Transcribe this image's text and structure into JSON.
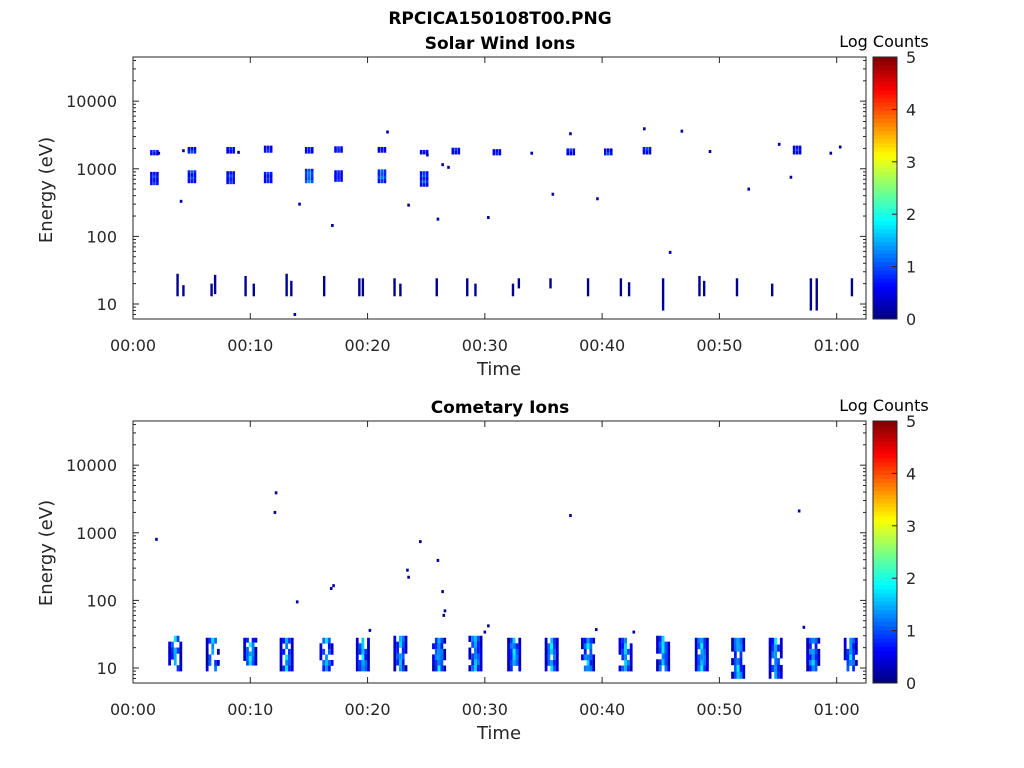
{
  "figure_title": "RPCICA150108T00.PNG",
  "colors": {
    "colormap": [
      "#00007f",
      "#0000ff",
      "#007fff",
      "#00ffff",
      "#7fff7f",
      "#ffff00",
      "#ff7f00",
      "#ff0000",
      "#7f0000"
    ],
    "axis": "#262626"
  },
  "chart_data": [
    {
      "type": "heatmap",
      "title": "Solar Wind Ions",
      "xlabel": "Time",
      "ylabel": "Energy (eV)",
      "x_unit": "minutes",
      "xlim": [
        0,
        62.5
      ],
      "ylim": [
        6,
        45000
      ],
      "yscale": "log",
      "xticks": [
        0,
        10,
        20,
        30,
        40,
        50,
        60
      ],
      "xticklabels": [
        "00:00",
        "00:10",
        "00:20",
        "00:30",
        "00:40",
        "00:50",
        "01:00"
      ],
      "yticks": [
        10,
        100,
        1000,
        10000
      ],
      "yticklabels": [
        "10",
        "100",
        "1000",
        "10000"
      ],
      "colorbar": {
        "label": "Log Counts",
        "range": [
          0,
          5
        ],
        "ticks": [
          "0",
          "1",
          "2",
          "3",
          "4",
          "5"
        ]
      },
      "spectra": [
        {
          "t": 1.8,
          "segs": [
            [
              580,
              900,
              0.8
            ],
            [
              1600,
              1900,
              0.8
            ]
          ]
        },
        {
          "t": 5.0,
          "segs": [
            [
              620,
              950,
              0.9
            ],
            [
              1700,
              2100,
              0.9
            ]
          ]
        },
        {
          "t": 8.3,
          "segs": [
            [
              600,
              920,
              0.9
            ],
            [
              1700,
              2100,
              0.7
            ]
          ]
        },
        {
          "t": 11.5,
          "segs": [
            [
              620,
              900,
              0.9
            ],
            [
              1750,
              2200,
              0.9
            ]
          ]
        },
        {
          "t": 15.0,
          "segs": [
            [
              620,
              1000,
              1.3
            ],
            [
              1700,
              2100,
              0.8
            ]
          ]
        },
        {
          "t": 17.5,
          "segs": [
            [
              650,
              950,
              0.8
            ],
            [
              1750,
              2150,
              0.9
            ]
          ]
        },
        {
          "t": 21.2,
          "segs": [
            [
              620,
              980,
              1.2
            ],
            [
              1750,
              2100,
              0.7
            ]
          ]
        },
        {
          "t": 24.8,
          "segs": [
            [
              550,
              920,
              1.0
            ],
            [
              1650,
              1900,
              0.7
            ]
          ]
        },
        {
          "t": 27.5,
          "segs": [
            [
              1650,
              2050,
              0.8
            ]
          ]
        },
        {
          "t": 31.0,
          "segs": [
            [
              1600,
              1950,
              0.7
            ]
          ]
        },
        {
          "t": 37.3,
          "segs": [
            [
              1600,
              2000,
              0.8
            ]
          ]
        },
        {
          "t": 40.5,
          "segs": [
            [
              1600,
              2000,
              0.8
            ]
          ]
        },
        {
          "t": 43.8,
          "segs": [
            [
              1650,
              2100,
              0.8
            ]
          ]
        },
        {
          "t": 56.6,
          "segs": [
            [
              1650,
              2200,
              0.8
            ]
          ]
        }
      ],
      "lowband": [
        {
          "t": 3.8,
          "lo": 13,
          "hi": 28
        },
        {
          "t": 4.3,
          "lo": 13,
          "hi": 19
        },
        {
          "t": 6.7,
          "lo": 13,
          "hi": 20
        },
        {
          "t": 7.0,
          "lo": 14,
          "hi": 27
        },
        {
          "t": 9.6,
          "lo": 13,
          "hi": 26
        },
        {
          "t": 10.3,
          "lo": 13,
          "hi": 20
        },
        {
          "t": 13.1,
          "lo": 13,
          "hi": 28
        },
        {
          "t": 13.5,
          "lo": 13,
          "hi": 22
        },
        {
          "t": 16.3,
          "lo": 13,
          "hi": 26
        },
        {
          "t": 19.3,
          "lo": 13,
          "hi": 24
        },
        {
          "t": 19.6,
          "lo": 13,
          "hi": 24
        },
        {
          "t": 22.3,
          "lo": 13,
          "hi": 24
        },
        {
          "t": 22.8,
          "lo": 13,
          "hi": 20
        },
        {
          "t": 25.9,
          "lo": 13,
          "hi": 24
        },
        {
          "t": 28.5,
          "lo": 13,
          "hi": 24
        },
        {
          "t": 29.2,
          "lo": 13,
          "hi": 20
        },
        {
          "t": 32.4,
          "lo": 13,
          "hi": 20
        },
        {
          "t": 32.9,
          "lo": 17,
          "hi": 24
        },
        {
          "t": 35.6,
          "lo": 17,
          "hi": 24
        },
        {
          "t": 38.8,
          "lo": 13,
          "hi": 24
        },
        {
          "t": 41.6,
          "lo": 13,
          "hi": 24
        },
        {
          "t": 42.3,
          "lo": 13,
          "hi": 21
        },
        {
          "t": 45.2,
          "lo": 8,
          "hi": 24
        },
        {
          "t": 48.3,
          "lo": 13,
          "hi": 26
        },
        {
          "t": 48.7,
          "lo": 13,
          "hi": 22
        },
        {
          "t": 51.5,
          "lo": 13,
          "hi": 24
        },
        {
          "t": 54.5,
          "lo": 13,
          "hi": 20
        },
        {
          "t": 57.8,
          "lo": 8,
          "hi": 24
        },
        {
          "t": 58.3,
          "lo": 8,
          "hi": 24
        },
        {
          "t": 61.3,
          "lo": 13,
          "hi": 24
        }
      ],
      "dots": [
        [
          2.2,
          1700
        ],
        [
          4.1,
          330
        ],
        [
          4.3,
          1850
        ],
        [
          9.0,
          1750
        ],
        [
          13.8,
          7
        ],
        [
          14.2,
          300
        ],
        [
          17.0,
          145
        ],
        [
          21.7,
          3500
        ],
        [
          23.5,
          290
        ],
        [
          25.1,
          1600
        ],
        [
          26.0,
          180
        ],
        [
          26.4,
          1150
        ],
        [
          26.9,
          1050
        ],
        [
          30.3,
          190
        ],
        [
          34.0,
          1700
        ],
        [
          35.8,
          420
        ],
        [
          37.3,
          3300
        ],
        [
          39.6,
          360
        ],
        [
          43.6,
          3900
        ],
        [
          45.8,
          58
        ],
        [
          46.8,
          3600
        ],
        [
          49.2,
          1800
        ],
        [
          52.5,
          500
        ],
        [
          55.1,
          2300
        ],
        [
          56.1,
          750
        ],
        [
          59.5,
          1700
        ],
        [
          60.3,
          2100
        ]
      ]
    },
    {
      "type": "heatmap",
      "title": "Cometary Ions",
      "xlabel": "Time",
      "ylabel": "Energy (eV)",
      "x_unit": "minutes",
      "xlim": [
        0,
        62.5
      ],
      "ylim": [
        6,
        45000
      ],
      "yscale": "log",
      "xticks": [
        0,
        10,
        20,
        30,
        40,
        50,
        60
      ],
      "xticklabels": [
        "00:00",
        "00:10",
        "00:20",
        "00:30",
        "00:40",
        "00:50",
        "01:00"
      ],
      "yticks": [
        10,
        100,
        1000,
        10000
      ],
      "yticklabels": [
        "10",
        "100",
        "1000",
        "10000"
      ],
      "colorbar": {
        "label": "Log Counts",
        "range": [
          0,
          5
        ],
        "ticks": [
          "0",
          "1",
          "2",
          "3",
          "4",
          "5"
        ]
      },
      "blocks": [
        {
          "t": 3.6,
          "lo": 9,
          "hi": 30
        },
        {
          "t": 6.8,
          "lo": 9,
          "hi": 28
        },
        {
          "t": 10.0,
          "lo": 11,
          "hi": 28
        },
        {
          "t": 13.1,
          "lo": 9,
          "hi": 28
        },
        {
          "t": 16.5,
          "lo": 9,
          "hi": 28
        },
        {
          "t": 19.6,
          "lo": 9,
          "hi": 28
        },
        {
          "t": 22.8,
          "lo": 9,
          "hi": 30
        },
        {
          "t": 26.1,
          "lo": 9,
          "hi": 28
        },
        {
          "t": 29.2,
          "lo": 9,
          "hi": 30
        },
        {
          "t": 32.5,
          "lo": 9,
          "hi": 28
        },
        {
          "t": 35.7,
          "lo": 9,
          "hi": 28
        },
        {
          "t": 38.8,
          "lo": 9,
          "hi": 28
        },
        {
          "t": 42.0,
          "lo": 9,
          "hi": 28
        },
        {
          "t": 45.2,
          "lo": 9,
          "hi": 30
        },
        {
          "t": 48.5,
          "lo": 9,
          "hi": 28
        },
        {
          "t": 51.6,
          "lo": 7,
          "hi": 28
        },
        {
          "t": 54.8,
          "lo": 7,
          "hi": 28
        },
        {
          "t": 58.0,
          "lo": 9,
          "hi": 28
        },
        {
          "t": 61.2,
          "lo": 9,
          "hi": 28
        }
      ],
      "dots": [
        [
          2.0,
          800
        ],
        [
          12.1,
          2000
        ],
        [
          12.2,
          3900
        ],
        [
          14.0,
          95
        ],
        [
          16.9,
          150
        ],
        [
          17.1,
          165
        ],
        [
          20.2,
          36
        ],
        [
          23.4,
          280
        ],
        [
          23.5,
          220
        ],
        [
          24.5,
          740
        ],
        [
          26.0,
          390
        ],
        [
          26.4,
          135
        ],
        [
          26.5,
          60
        ],
        [
          26.6,
          70
        ],
        [
          30.3,
          42
        ],
        [
          30.0,
          34
        ],
        [
          37.3,
          1800
        ],
        [
          39.5,
          37
        ],
        [
          42.7,
          34
        ],
        [
          56.8,
          2100
        ],
        [
          57.2,
          40
        ]
      ]
    }
  ]
}
